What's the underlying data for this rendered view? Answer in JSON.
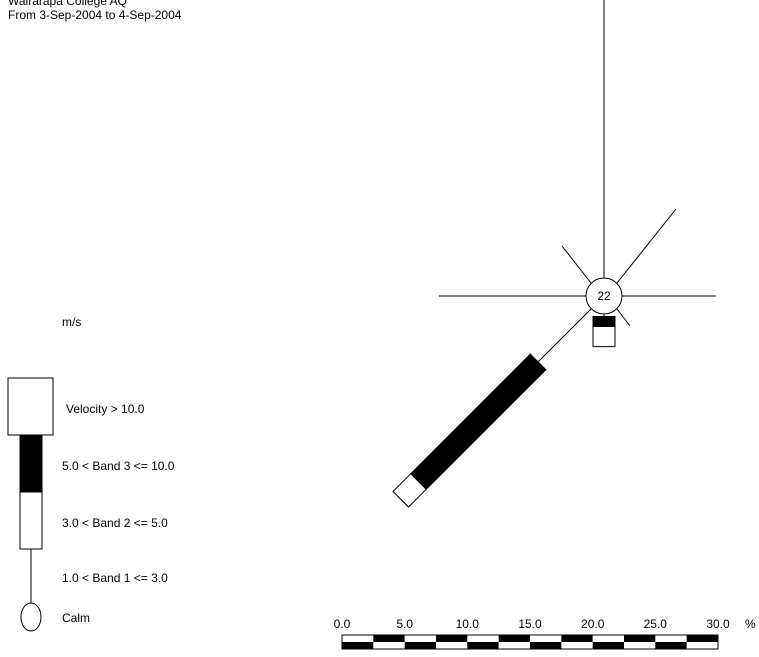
{
  "header": {
    "site": "Wairarapa College AQ",
    "period": "From  3-Sep-2004 to  4-Sep-2004"
  },
  "legend": {
    "unit": "m/s",
    "entries": [
      {
        "label": "Velocity > 10.0",
        "fill": "#ffffff"
      },
      {
        "label": "5.0 < Band 3 <= 10.0",
        "fill": "#000000"
      },
      {
        "label": "3.0 < Band 2 <= 5.0",
        "fill": "#ffffff"
      },
      {
        "label": "1.0 < Band 1 <= 3.0",
        "fill": "none"
      },
      {
        "label": "Calm",
        "fill": "none"
      }
    ]
  },
  "chart_data": {
    "type": "windrose",
    "calm_percent": "22",
    "scale": {
      "unit": "%",
      "ticks": [
        "0.0",
        "5.0",
        "10.0",
        "15.0",
        "20.0",
        "25.0",
        "30.0"
      ],
      "max": 30
    },
    "directions": [
      {
        "bearing": 225,
        "band1": 6.0,
        "band2": 0,
        "band3": 13.5,
        "band4": 2.0
      },
      {
        "bearing": 180,
        "band1": 0.2,
        "band2": 0,
        "band3": 0.8,
        "band4": 1.6
      }
    ]
  }
}
